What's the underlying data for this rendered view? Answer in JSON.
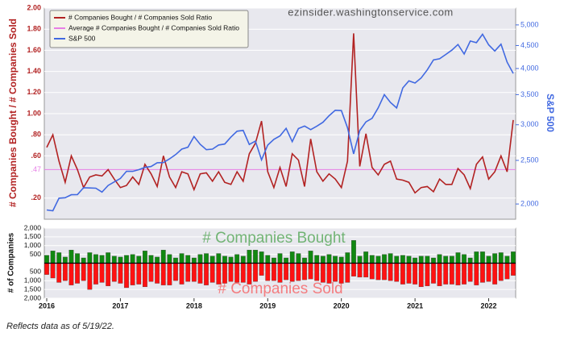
{
  "watermark": "ezinsider.washingtonservice.com",
  "footnote": "Reflects data as of 5/19/22.",
  "chart_data": [
    {
      "type": "line",
      "y_label": "# Companies Bought / # Companies Sold",
      "y2_label": "S&P 500",
      "ylim": [
        0,
        2
      ],
      "yticks": [
        {
          "value": 0.2,
          "label": ".20"
        },
        {
          "value": 0.6,
          "label": ".60"
        },
        {
          "value": 0.8,
          "label": ".80"
        },
        {
          "value": 1,
          "label": "1.00"
        },
        {
          "value": 1.2,
          "label": "1.20"
        },
        {
          "value": 1.4,
          "label": "1.40"
        },
        {
          "value": 1.6,
          "label": "1.60"
        },
        {
          "value": 1.8,
          "label": "1.80"
        },
        {
          "value": 2,
          "label": "2.00"
        }
      ],
      "y2lim": [
        1850,
        5450
      ],
      "y2log": true,
      "y2ticks": [
        {
          "value": 2000,
          "label": "2,000"
        },
        {
          "value": 2500,
          "label": "2,500"
        },
        {
          "value": 3000,
          "label": "3,000"
        },
        {
          "value": 3500,
          "label": "3,500"
        },
        {
          "value": 4000,
          "label": "4,000"
        },
        {
          "value": 4500,
          "label": "4,500"
        },
        {
          "value": 5000,
          "label": "5,000"
        }
      ],
      "grid": true,
      "legend": "upper left",
      "average": {
        "name": "Average # Companies Bought / # Companies Sold Ratio",
        "color": "#e77fe6",
        "value": 0.47,
        "value_label": ".47"
      },
      "series": [
        {
          "name": "# Companies Bought / # Companies Sold Ratio",
          "color": "#b22222",
          "values": [
            0.68,
            0.8,
            0.55,
            0.35,
            0.6,
            0.47,
            0.3,
            0.4,
            0.42,
            0.41,
            0.47,
            0.38,
            0.3,
            0.32,
            0.4,
            0.33,
            0.52,
            0.43,
            0.31,
            0.6,
            0.4,
            0.3,
            0.45,
            0.43,
            0.28,
            0.43,
            0.44,
            0.36,
            0.45,
            0.35,
            0.33,
            0.45,
            0.36,
            0.62,
            0.72,
            0.93,
            0.45,
            0.3,
            0.49,
            0.31,
            0.62,
            0.56,
            0.31,
            0.76,
            0.45,
            0.36,
            0.43,
            0.38,
            0.3,
            0.55,
            1.76,
            0.5,
            0.81,
            0.49,
            0.42,
            0.52,
            0.55,
            0.38,
            0.37,
            0.35,
            0.25,
            0.3,
            0.31,
            0.26,
            0.38,
            0.33,
            0.33,
            0.48,
            0.42,
            0.29,
            0.52,
            0.59,
            0.38,
            0.45,
            0.6,
            0.45,
            0.94
          ]
        },
        {
          "name": "S&P 500",
          "color": "#4169e1",
          "axis": "y2",
          "values": [
            1940,
            1932,
            2060,
            2065,
            2097,
            2099,
            2174,
            2171,
            2168,
            2126,
            2199,
            2239,
            2279,
            2364,
            2363,
            2384,
            2412,
            2423,
            2470,
            2472,
            2519,
            2575,
            2648,
            2674,
            2824,
            2714,
            2641,
            2648,
            2705,
            2718,
            2816,
            2902,
            2914,
            2712,
            2760,
            2507,
            2704,
            2784,
            2834,
            2946,
            2752,
            2942,
            2980,
            2926,
            2977,
            3038,
            3141,
            3231,
            3226,
            2954,
            2585,
            2912,
            3044,
            3100,
            3271,
            3500,
            3363,
            3270,
            3622,
            3756,
            3714,
            3811,
            3973,
            4181,
            4204,
            4298,
            4395,
            4523,
            4308,
            4605,
            4567,
            4766,
            4516,
            4374,
            4530,
            4132,
            3901
          ]
        }
      ]
    },
    {
      "type": "bar",
      "y_label": "# of Companies",
      "ylim": [
        -2000,
        2000
      ],
      "yticks": [
        {
          "value": 2000,
          "label": "2,000"
        },
        {
          "value": 1500,
          "label": "1,500"
        },
        {
          "value": 1000,
          "label": "1,000"
        },
        500,
        {
          "value": -500,
          "label": "500"
        },
        {
          "value": -1000,
          "label": "1,000"
        },
        {
          "value": -1500,
          "label": "1,500"
        },
        {
          "value": -2000,
          "label": "2,000"
        }
      ],
      "categories": [
        "2016",
        null,
        null,
        null,
        null,
        null,
        null,
        null,
        null,
        null,
        null,
        null,
        "2017",
        null,
        null,
        null,
        null,
        null,
        null,
        null,
        null,
        null,
        null,
        null,
        "2018",
        null,
        null,
        null,
        null,
        null,
        null,
        null,
        null,
        null,
        null,
        null,
        "2019",
        null,
        null,
        null,
        null,
        null,
        null,
        null,
        null,
        null,
        null,
        null,
        "2020",
        null,
        null,
        null,
        null,
        null,
        null,
        null,
        null,
        null,
        null,
        null,
        "2021",
        null,
        null,
        null,
        null,
        null,
        null,
        null,
        null,
        null,
        null,
        null,
        "2022",
        null,
        null,
        null,
        null
      ],
      "series": [
        {
          "name": "# Companies Bought",
          "color": "#118811",
          "values": [
            450,
            700,
            600,
            350,
            750,
            550,
            300,
            600,
            500,
            450,
            600,
            400,
            350,
            450,
            500,
            400,
            700,
            450,
            350,
            750,
            500,
            300,
            550,
            450,
            300,
            500,
            550,
            400,
            550,
            400,
            350,
            500,
            400,
            750,
            750,
            650,
            450,
            300,
            550,
            300,
            650,
            550,
            300,
            700,
            450,
            400,
            500,
            400,
            350,
            600,
            1300,
            400,
            650,
            450,
            400,
            500,
            550,
            400,
            450,
            400,
            300,
            400,
            400,
            300,
            500,
            400,
            400,
            600,
            500,
            300,
            650,
            650,
            400,
            550,
            600,
            400,
            650
          ]
        },
        {
          "name": "# Companies Sold",
          "color": "#ff1111",
          "values": [
            -650,
            -850,
            -1100,
            -1000,
            -1250,
            -1150,
            -1000,
            -1500,
            -1200,
            -1100,
            -1300,
            -1050,
            -1150,
            -1400,
            -1250,
            -1200,
            -1350,
            -1050,
            -1150,
            -1250,
            -1250,
            -1000,
            -1200,
            -1050,
            -1050,
            -1150,
            -1250,
            -1100,
            -1200,
            -1150,
            -1050,
            -1100,
            -1100,
            -1200,
            -1050,
            -700,
            -1000,
            -1000,
            -1100,
            -950,
            -1050,
            -1000,
            -950,
            -900,
            -1000,
            -1100,
            -1150,
            -1050,
            -1150,
            -1100,
            -750,
            -800,
            -800,
            -900,
            -950,
            -950,
            -1000,
            -1050,
            -1200,
            -1150,
            -1200,
            -1350,
            -1300,
            -1150,
            -1300,
            -1200,
            -1200,
            -1250,
            -1200,
            -1050,
            -1250,
            -1100,
            -1050,
            -1200,
            -1000,
            -900,
            -700
          ]
        }
      ]
    }
  ]
}
